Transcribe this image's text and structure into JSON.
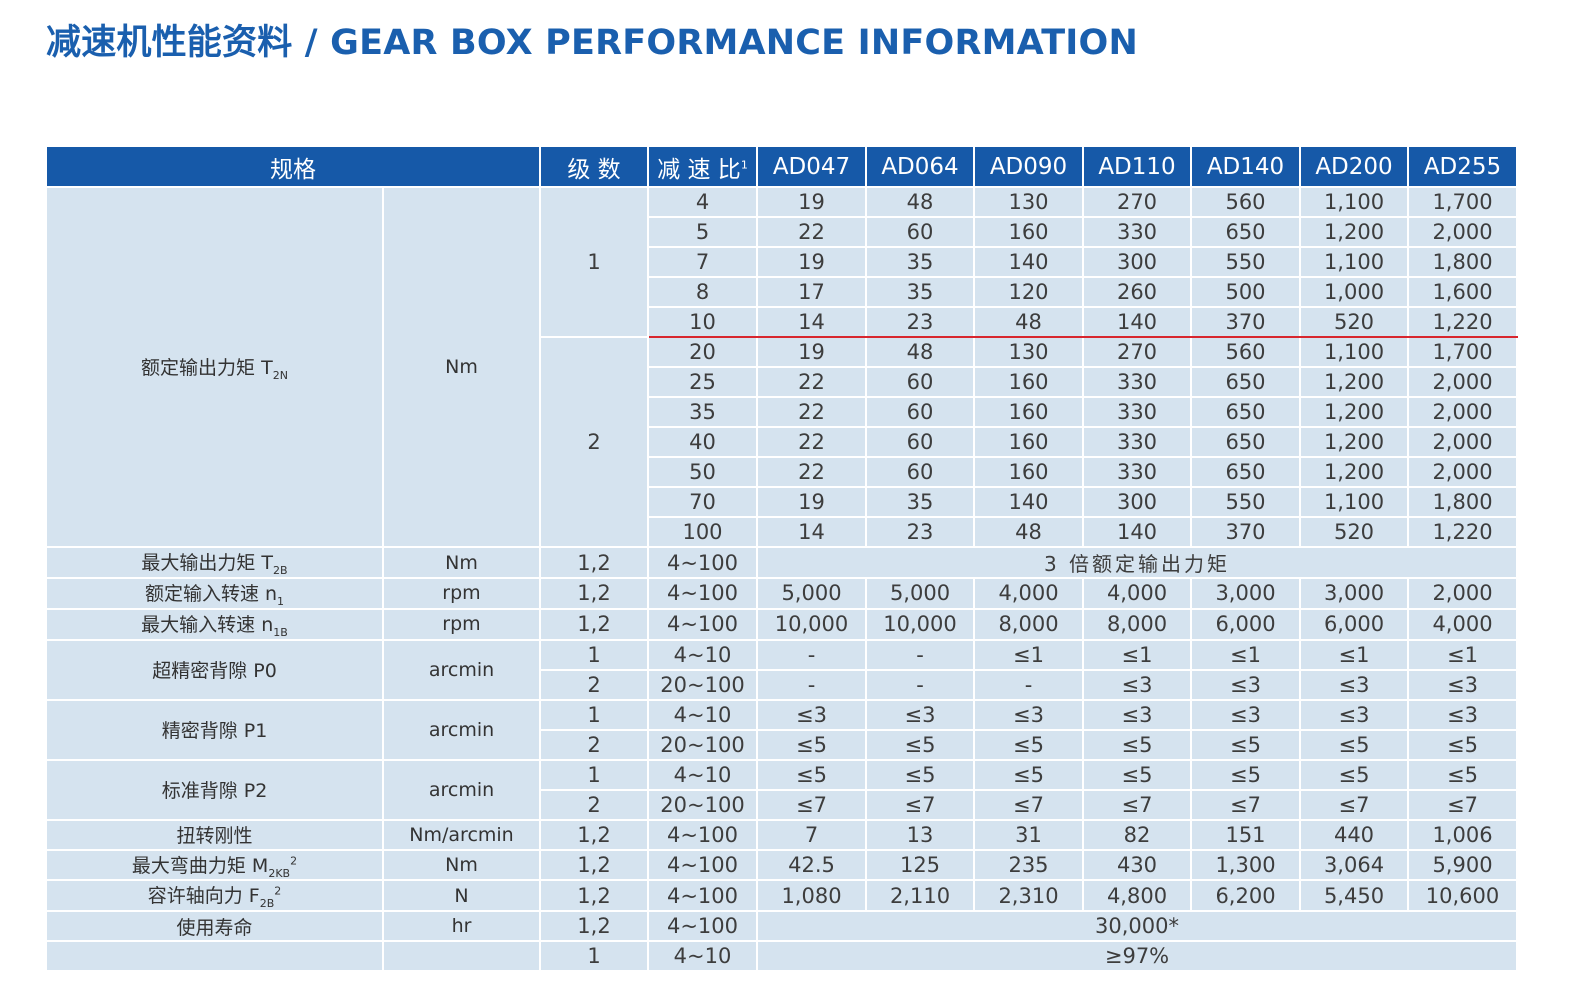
{
  "title": "减速机性能资料 / GEAR BOX PERFORMANCE INFORMATION",
  "colors": {
    "title": "#1a5fae",
    "header_bg": "#1659a8",
    "cell_bg": "#d5e3ef",
    "divider": "#d8262e"
  },
  "header": {
    "spec": "规格",
    "stages": "级 数",
    "ratio": "减 速 比",
    "ratio_note": "1",
    "models": [
      "AD047",
      "AD064",
      "AD090",
      "AD110",
      "AD140",
      "AD200",
      "AD255"
    ]
  },
  "rated_torque": {
    "label": "额定输出力矩 T",
    "sub": "2N",
    "unit": "Nm",
    "stage1": "1",
    "stage2": "2",
    "rows": [
      {
        "ratio": "4",
        "values": [
          "19",
          "48",
          "130",
          "270",
          "560",
          "1,100",
          "1,700"
        ]
      },
      {
        "ratio": "5",
        "values": [
          "22",
          "60",
          "160",
          "330",
          "650",
          "1,200",
          "2,000"
        ]
      },
      {
        "ratio": "7",
        "values": [
          "19",
          "35",
          "140",
          "300",
          "550",
          "1,100",
          "1,800"
        ]
      },
      {
        "ratio": "8",
        "values": [
          "17",
          "35",
          "120",
          "260",
          "500",
          "1,000",
          "1,600"
        ]
      },
      {
        "ratio": "10",
        "values": [
          "14",
          "23",
          "48",
          "140",
          "370",
          "520",
          "1,220"
        ]
      },
      {
        "ratio": "20",
        "values": [
          "19",
          "48",
          "130",
          "270",
          "560",
          "1,100",
          "1,700"
        ]
      },
      {
        "ratio": "25",
        "values": [
          "22",
          "60",
          "160",
          "330",
          "650",
          "1,200",
          "2,000"
        ]
      },
      {
        "ratio": "35",
        "values": [
          "22",
          "60",
          "160",
          "330",
          "650",
          "1,200",
          "2,000"
        ]
      },
      {
        "ratio": "40",
        "values": [
          "22",
          "60",
          "160",
          "330",
          "650",
          "1,200",
          "2,000"
        ]
      },
      {
        "ratio": "50",
        "values": [
          "22",
          "60",
          "160",
          "330",
          "650",
          "1,200",
          "2,000"
        ]
      },
      {
        "ratio": "70",
        "values": [
          "19",
          "35",
          "140",
          "300",
          "550",
          "1,100",
          "1,800"
        ]
      },
      {
        "ratio": "100",
        "values": [
          "14",
          "23",
          "48",
          "140",
          "370",
          "520",
          "1,220"
        ]
      }
    ]
  },
  "max_torque": {
    "label": "最大输出力矩 T",
    "sub": "2B",
    "unit": "Nm",
    "stages": "1,2",
    "ratio": "4~100",
    "value": "3 倍额定输出力矩"
  },
  "rated_speed": {
    "label": "额定输入转速 n",
    "sub": "1",
    "unit": "rpm",
    "stages": "1,2",
    "ratio": "4~100",
    "values": [
      "5,000",
      "5,000",
      "4,000",
      "4,000",
      "3,000",
      "3,000",
      "2,000"
    ]
  },
  "max_speed": {
    "label": "最大输入转速 n",
    "sub": "1B",
    "unit": "rpm",
    "stages": "1,2",
    "ratio": "4~100",
    "values": [
      "10,000",
      "10,000",
      "8,000",
      "8,000",
      "6,000",
      "6,000",
      "4,000"
    ]
  },
  "backlash_p0": {
    "label": "超精密背隙  P0",
    "unit": "arcmin",
    "rows": [
      {
        "stage": "1",
        "ratio": "4~10",
        "values": [
          "-",
          "-",
          "≤1",
          "≤1",
          "≤1",
          "≤1",
          "≤1"
        ]
      },
      {
        "stage": "2",
        "ratio": "20~100",
        "values": [
          "-",
          "-",
          "-",
          "≤3",
          "≤3",
          "≤3",
          "≤3"
        ]
      }
    ]
  },
  "backlash_p1": {
    "label": "精密背隙  P1",
    "unit": "arcmin",
    "rows": [
      {
        "stage": "1",
        "ratio": "4~10",
        "values": [
          "≤3",
          "≤3",
          "≤3",
          "≤3",
          "≤3",
          "≤3",
          "≤3"
        ]
      },
      {
        "stage": "2",
        "ratio": "20~100",
        "values": [
          "≤5",
          "≤5",
          "≤5",
          "≤5",
          "≤5",
          "≤5",
          "≤5"
        ]
      }
    ]
  },
  "backlash_p2": {
    "label": "标准背隙  P2",
    "unit": "arcmin",
    "rows": [
      {
        "stage": "1",
        "ratio": "4~10",
        "values": [
          "≤5",
          "≤5",
          "≤5",
          "≤5",
          "≤5",
          "≤5",
          "≤5"
        ]
      },
      {
        "stage": "2",
        "ratio": "20~100",
        "values": [
          "≤7",
          "≤7",
          "≤7",
          "≤7",
          "≤7",
          "≤7",
          "≤7"
        ]
      }
    ]
  },
  "torsional": {
    "label": "扭转刚性",
    "unit": "Nm/arcmin",
    "stages": "1,2",
    "ratio": "4~100",
    "values": [
      "7",
      "13",
      "31",
      "82",
      "151",
      "440",
      "1,006"
    ]
  },
  "bending": {
    "label": "最大弯曲力矩 M",
    "sub": "2KB",
    "sup": "2",
    "unit": "Nm",
    "stages": "1,2",
    "ratio": "4~100",
    "values": [
      "42.5",
      "125",
      "235",
      "430",
      "1,300",
      "3,064",
      "5,900"
    ]
  },
  "axial": {
    "label": "容许轴向力 F",
    "sub": "2B",
    "sup": "2",
    "unit": "N",
    "stages": "1,2",
    "ratio": "4~100",
    "values": [
      "1,080",
      "2,110",
      "2,310",
      "4,800",
      "6,200",
      "5,450",
      "10,600"
    ]
  },
  "life": {
    "label": "使用寿命",
    "unit": "hr",
    "stages": "1,2",
    "ratio": "4~100",
    "value": "30,000*"
  },
  "efficiency": {
    "stage": "1",
    "ratio": "4~10",
    "value": "≥97%"
  }
}
